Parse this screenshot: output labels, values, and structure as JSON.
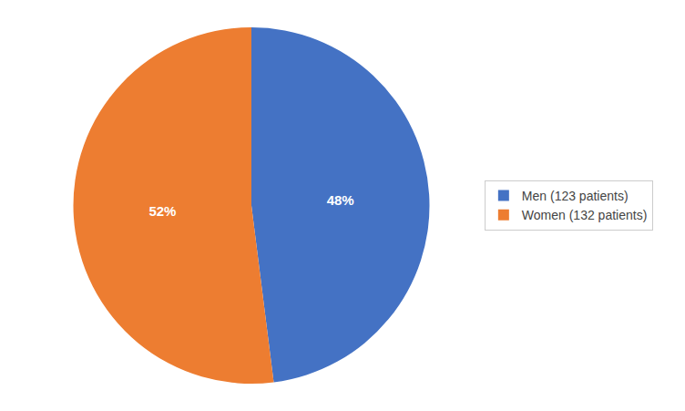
{
  "chart_data": {
    "type": "pie",
    "categories": [
      "Men (123 patients)",
      "Women (132 patients)"
    ],
    "values": [
      48,
      52
    ],
    "value_labels": [
      "48%",
      "52%"
    ],
    "colors": [
      "#4472C4",
      "#ED7D31"
    ],
    "data_labels": true,
    "legend": "right"
  }
}
